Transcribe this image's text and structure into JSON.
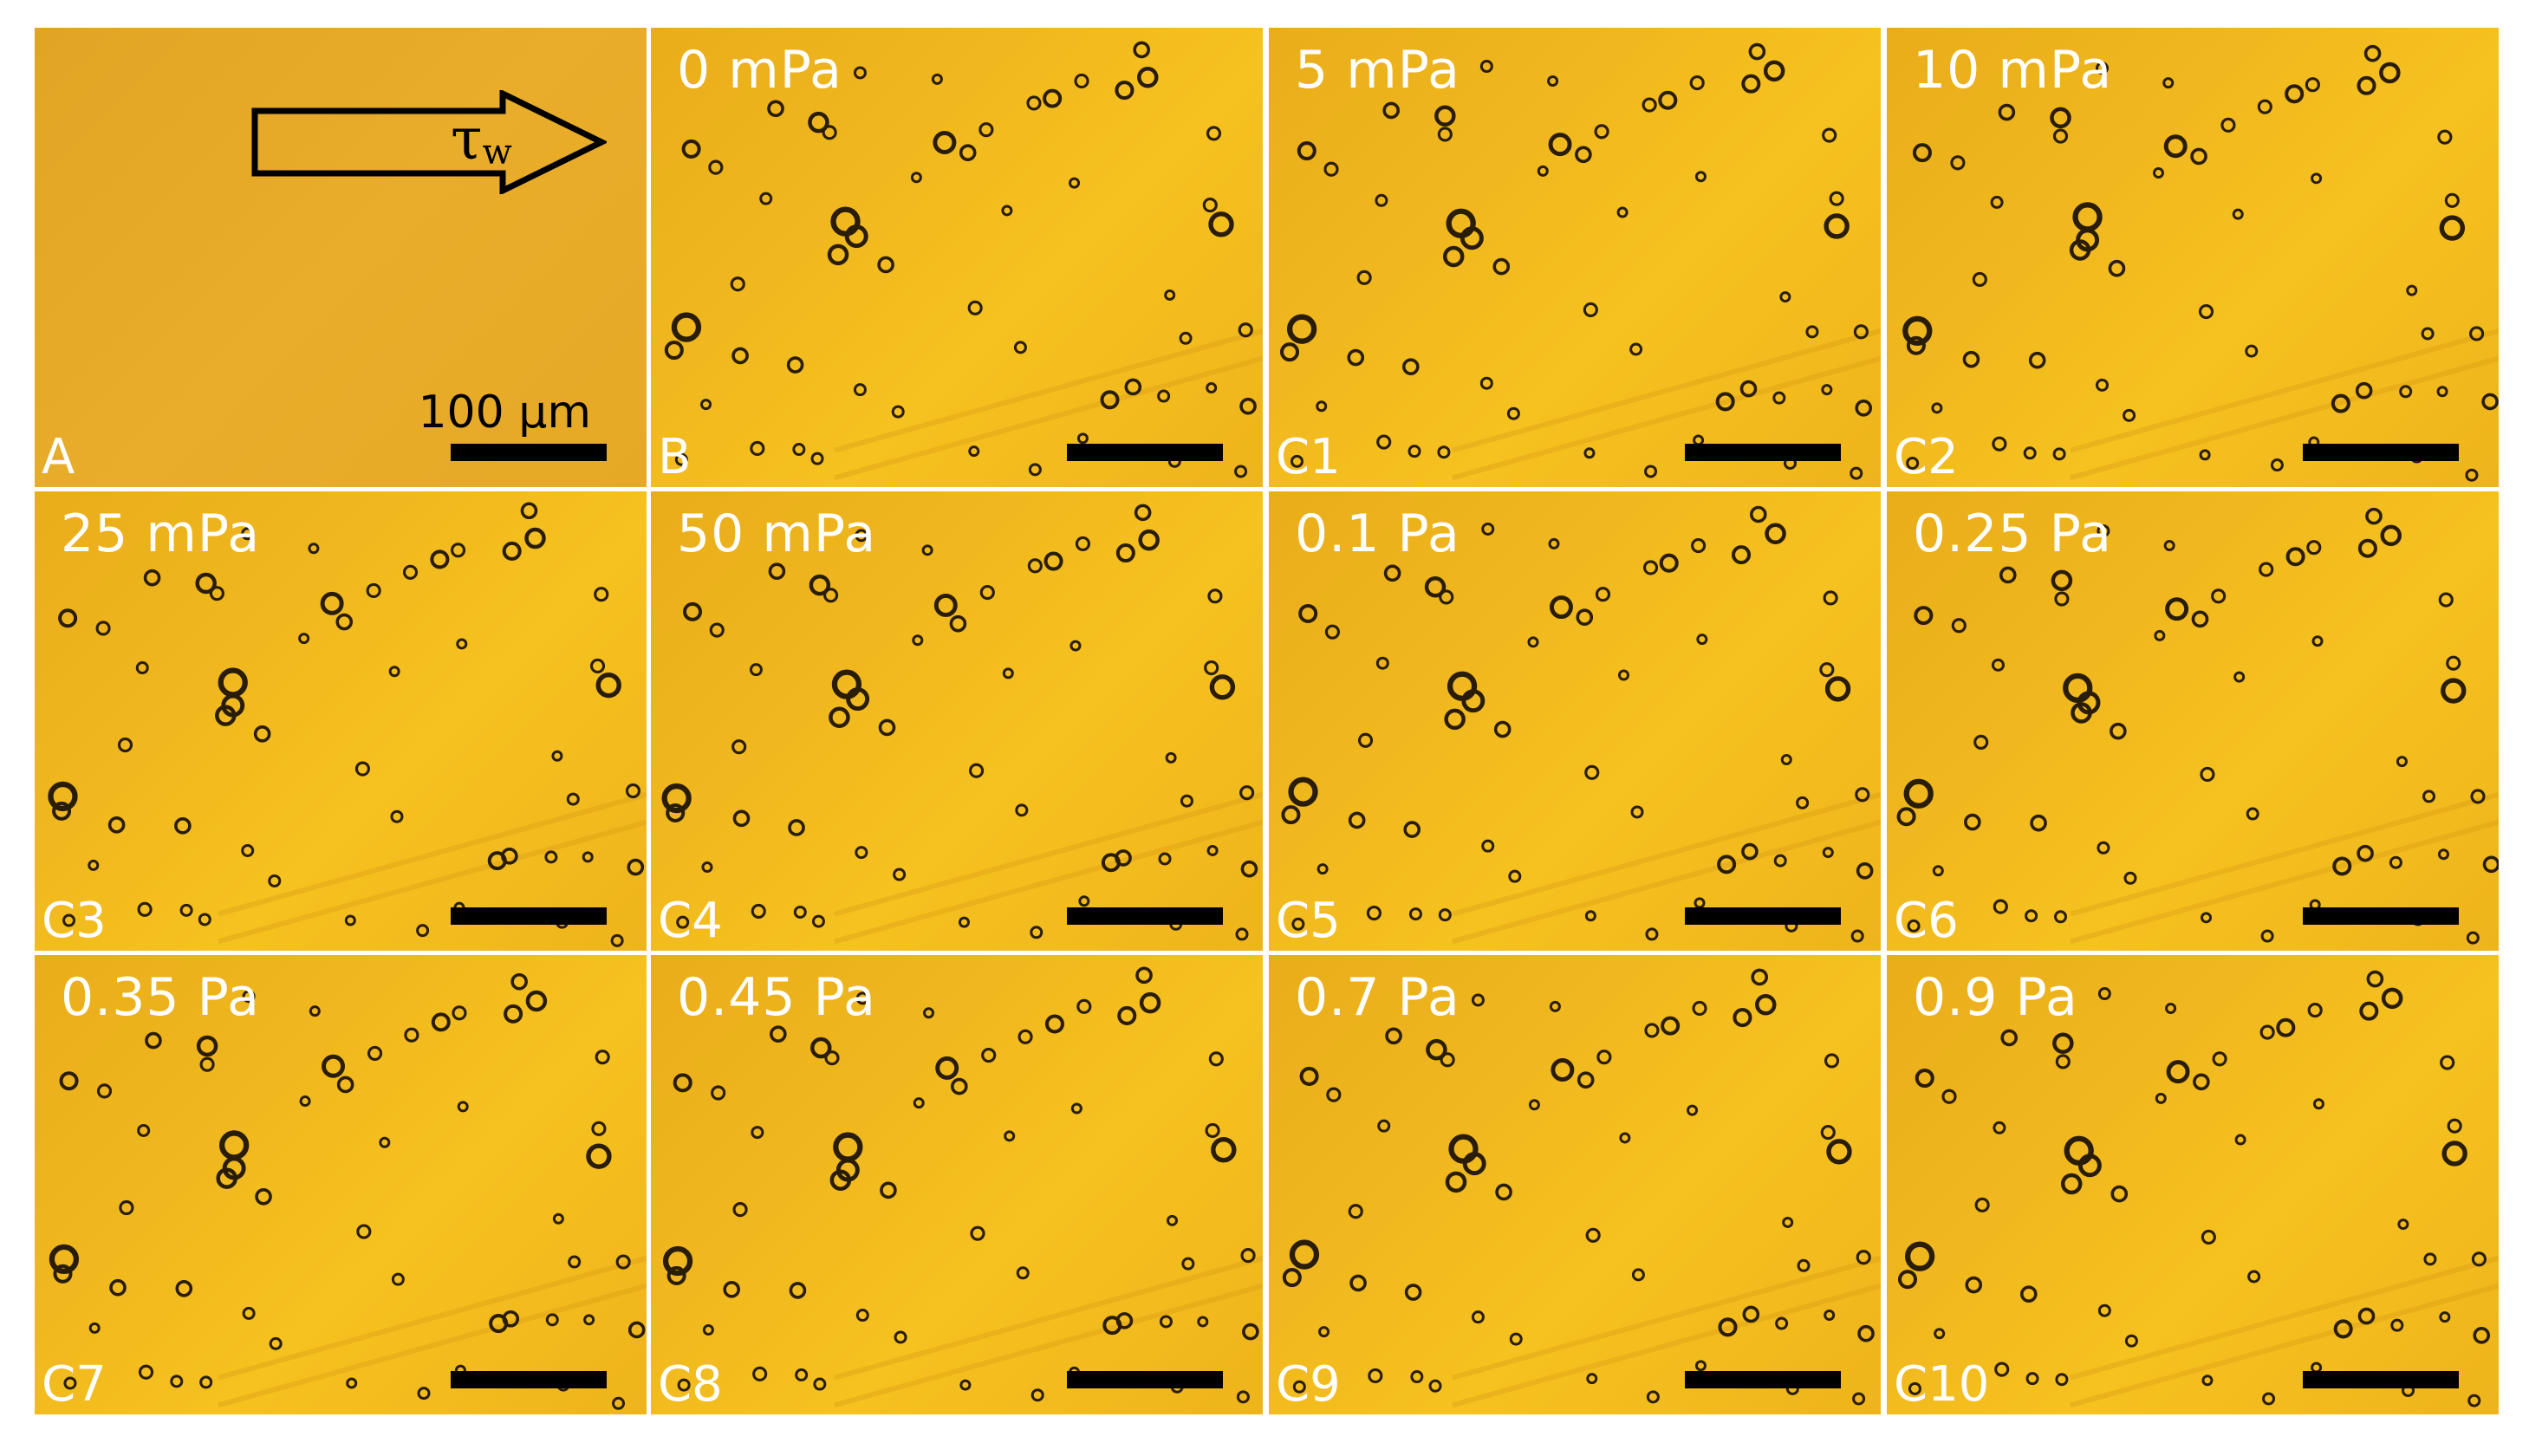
{
  "figure": {
    "panels": [
      {
        "id": "A",
        "condition": "",
        "has_particles": false,
        "scale_label": "100 µm",
        "shear_arrow_symbol": "τ",
        "shear_arrow_subscript": "w"
      },
      {
        "id": "B",
        "condition": "0 mPa",
        "has_particles": true
      },
      {
        "id": "C1",
        "condition": "5 mPa",
        "has_particles": true
      },
      {
        "id": "C2",
        "condition": "10 mPa",
        "has_particles": true
      },
      {
        "id": "C3",
        "condition": "25 mPa",
        "has_particles": true
      },
      {
        "id": "C4",
        "condition": "50 mPa",
        "has_particles": true
      },
      {
        "id": "C5",
        "condition": "0.1 Pa",
        "has_particles": true
      },
      {
        "id": "C6",
        "condition": "0.25 Pa",
        "has_particles": true
      },
      {
        "id": "C7",
        "condition": "0.35 Pa",
        "has_particles": true
      },
      {
        "id": "C8",
        "condition": "0.45 Pa",
        "has_particles": true
      },
      {
        "id": "C9",
        "condition": "0.7 Pa",
        "has_particles": true
      },
      {
        "id": "C10",
        "condition": "0.9 Pa",
        "has_particles": true
      }
    ],
    "colors": {
      "background": "#f2bc1e",
      "plain_background": "#e6a926",
      "particle": "#2a1d08",
      "label_text": "#ffffff",
      "scale_bar": "#000000"
    }
  }
}
